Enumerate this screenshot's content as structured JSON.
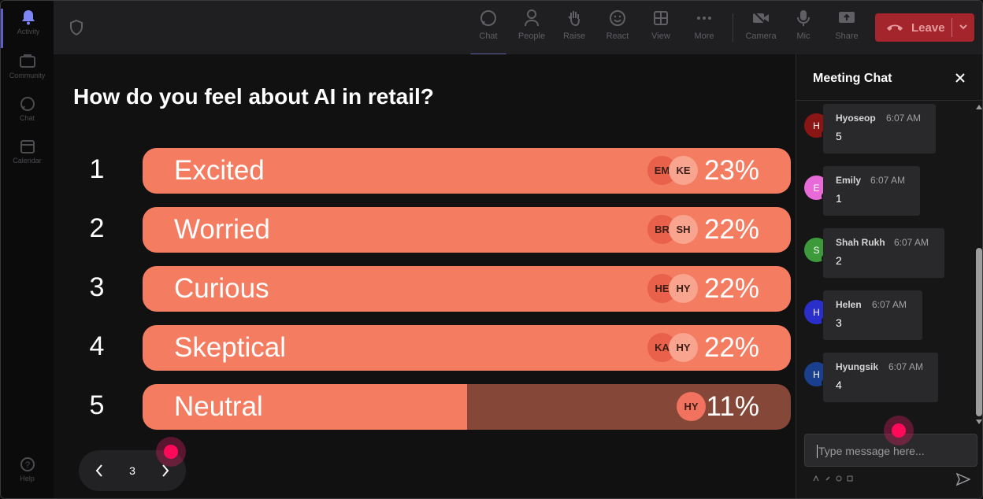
{
  "rail": {
    "items": [
      {
        "label": "Activity",
        "icon": "bell-icon",
        "active": true
      },
      {
        "label": "Community",
        "icon": "community-icon",
        "active": false
      },
      {
        "label": "Chat",
        "icon": "chat-icon",
        "active": false
      },
      {
        "label": "Calendar",
        "icon": "calendar-icon",
        "active": false
      }
    ],
    "help_label": "Help"
  },
  "toolbar": {
    "chat": "Chat",
    "people": "People",
    "raise": "Raise",
    "react": "React",
    "view": "View",
    "more": "More",
    "camera": "Camera",
    "mic": "Mic",
    "share": "Share",
    "leave": "Leave"
  },
  "poll": {
    "question": "How do you feel about AI in retail?",
    "options": [
      {
        "rank": "1",
        "label": "Excited",
        "percent": "23%",
        "fill": 1.0,
        "voters": [
          "EM",
          "KE"
        ]
      },
      {
        "rank": "2",
        "label": "Worried",
        "percent": "22%",
        "fill": 1.0,
        "voters": [
          "BR",
          "SH"
        ]
      },
      {
        "rank": "3",
        "label": "Curious",
        "percent": "22%",
        "fill": 1.0,
        "voters": [
          "HE",
          "HY"
        ]
      },
      {
        "rank": "4",
        "label": "Skeptical",
        "percent": "22%",
        "fill": 1.0,
        "voters": [
          "KA",
          "HY"
        ]
      },
      {
        "rank": "5",
        "label": "Neutral",
        "percent": "11%",
        "fill": 0.5,
        "voters": [
          "HY"
        ]
      }
    ],
    "page": "3"
  },
  "chat": {
    "title": "Meeting Chat",
    "messages": [
      {
        "initial": "H",
        "name": "Hyoseop",
        "time": "6:07 AM",
        "text": "5",
        "color": "#8a1515"
      },
      {
        "initial": "E",
        "name": "Emily",
        "time": "6:07 AM",
        "text": "1",
        "color": "#e86ad9"
      },
      {
        "initial": "S",
        "name": "Shah Rukh",
        "time": "6:07 AM",
        "text": "2",
        "color": "#3d9a3a"
      },
      {
        "initial": "H",
        "name": "Helen",
        "time": "6:07 AM",
        "text": "3",
        "color": "#2b2fc9"
      },
      {
        "initial": "H",
        "name": "Hyungsik",
        "time": "6:07 AM",
        "text": "4",
        "color": "#1a3f8f"
      }
    ],
    "compose_placeholder": "Type message here..."
  },
  "colors": {
    "accent": "#5b5fc7",
    "bar_fill": "#f47c60",
    "bar_track": "#844738",
    "leave": "#a4262c"
  }
}
